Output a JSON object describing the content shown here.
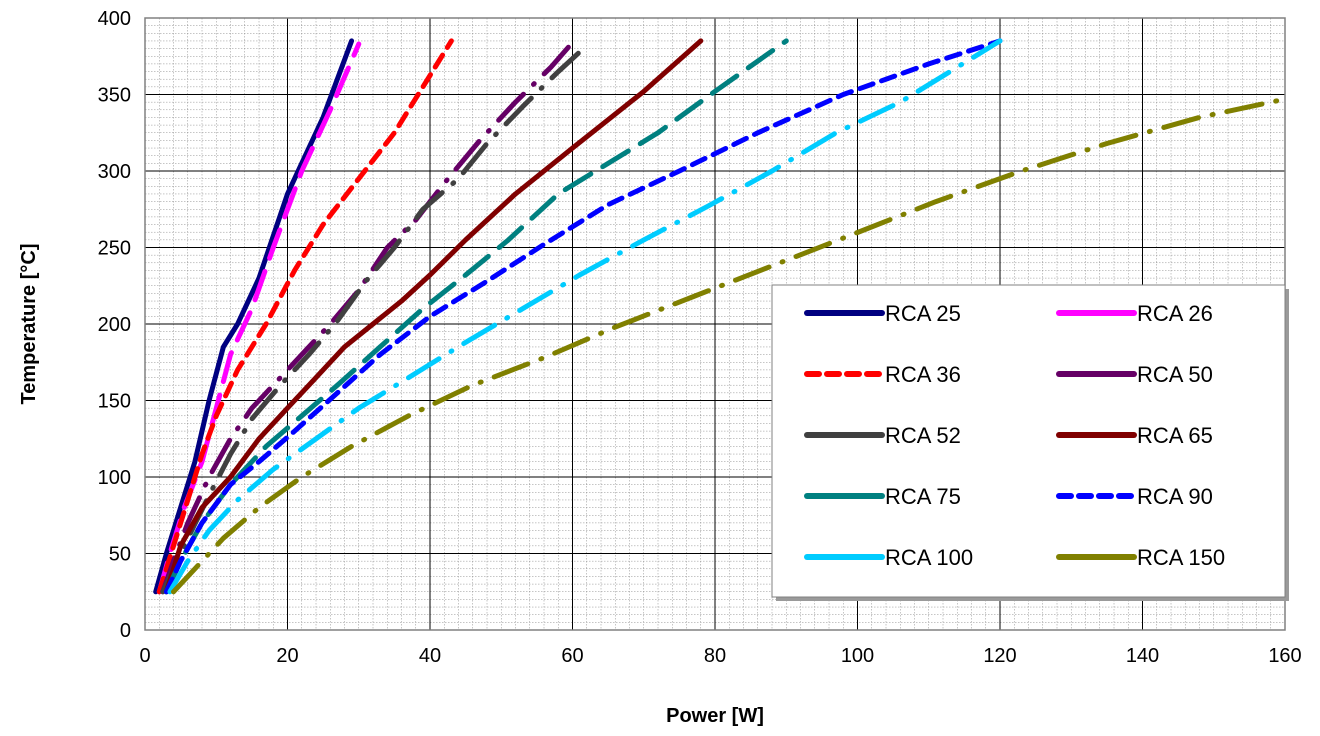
{
  "chart_data": {
    "type": "line",
    "title": "",
    "xlabel": "Power [W]",
    "ylabel": "Temperature [°C]",
    "xlim": [
      0,
      160
    ],
    "ylim": [
      0,
      400
    ],
    "xticks": [
      0,
      20,
      40,
      60,
      80,
      100,
      120,
      140,
      160
    ],
    "yticks": [
      0,
      50,
      100,
      150,
      200,
      250,
      300,
      350,
      400
    ],
    "grid": "major and minor",
    "legend_position": "right, lower-middle",
    "series": [
      {
        "name": "RCA 25",
        "color": "#000080",
        "style": "solid",
        "x": [
          1.5,
          3,
          5,
          7,
          9,
          11,
          13,
          16,
          20,
          25,
          29
        ],
        "y": [
          25,
          50,
          80,
          110,
          150,
          185,
          200,
          230,
          285,
          335,
          385
        ]
      },
      {
        "name": "RCA 26",
        "color": "#ff00ff",
        "style": "long-dash",
        "x": [
          2,
          3.5,
          5.5,
          8,
          10,
          12,
          15,
          18,
          22,
          26,
          30
        ],
        "y": [
          25,
          50,
          80,
          110,
          145,
          180,
          210,
          250,
          300,
          340,
          383
        ]
      },
      {
        "name": "RCA 36",
        "color": "#ff0000",
        "style": "dash",
        "x": [
          2,
          4,
          6,
          8,
          10,
          13,
          17,
          21,
          25,
          30,
          35,
          39,
          43
        ],
        "y": [
          25,
          55,
          85,
          115,
          140,
          170,
          200,
          235,
          265,
          295,
          325,
          355,
          385
        ]
      },
      {
        "name": "RCA 50",
        "color": "#660066",
        "style": "long-dash-dot",
        "x": [
          2.5,
          4,
          6,
          9,
          12,
          15,
          18,
          22,
          26,
          30,
          34,
          38,
          42,
          47,
          52,
          57,
          60
        ],
        "y": [
          25,
          45,
          70,
          100,
          125,
          145,
          160,
          180,
          200,
          222,
          250,
          268,
          292,
          320,
          345,
          368,
          384
        ]
      },
      {
        "name": "RCA 52",
        "color": "#404040",
        "style": "long-dash-dot",
        "x": [
          2.5,
          4,
          6,
          9,
          12,
          15,
          19,
          23,
          27,
          31,
          35,
          39,
          44,
          48,
          53,
          58,
          62
        ],
        "y": [
          25,
          40,
          60,
          88,
          115,
          138,
          160,
          180,
          202,
          228,
          250,
          275,
          295,
          318,
          342,
          365,
          382
        ]
      },
      {
        "name": "RCA 65",
        "color": "#800000",
        "style": "solid",
        "x": [
          3,
          5,
          8,
          12,
          16,
          20,
          24,
          28,
          32,
          36,
          40,
          45,
          52,
          60,
          70,
          78
        ],
        "y": [
          25,
          55,
          80,
          100,
          125,
          145,
          165,
          185,
          200,
          215,
          232,
          255,
          285,
          315,
          352,
          385
        ]
      },
      {
        "name": "RCA 75",
        "color": "#008080",
        "style": "long-dash",
        "x": [
          3,
          5,
          8,
          12,
          17,
          22,
          27,
          33,
          39,
          45,
          51,
          58,
          65,
          72,
          80,
          90
        ],
        "y": [
          25,
          45,
          70,
          95,
          120,
          140,
          160,
          185,
          210,
          232,
          255,
          285,
          305,
          325,
          352,
          385
        ]
      },
      {
        "name": "RCA 90",
        "color": "#0000ff",
        "style": "dash",
        "x": [
          3,
          5,
          8,
          12,
          16,
          21,
          27,
          33,
          40,
          48,
          56,
          65,
          75,
          86,
          98,
          110,
          120
        ],
        "y": [
          25,
          45,
          70,
          95,
          110,
          130,
          155,
          180,
          205,
          228,
          252,
          278,
          300,
          325,
          350,
          370,
          385
        ]
      },
      {
        "name": "RCA 100",
        "color": "#00ccff",
        "style": "long-dash-dot",
        "x": [
          3.5,
          6,
          9,
          13,
          18,
          24,
          30,
          37,
          45,
          53,
          61,
          70,
          79,
          88,
          97,
          106,
          113,
          120
        ],
        "y": [
          25,
          45,
          65,
          85,
          105,
          125,
          145,
          165,
          188,
          210,
          232,
          255,
          277,
          300,
          325,
          345,
          365,
          385
        ]
      },
      {
        "name": "RCA 150",
        "color": "#808000",
        "style": "long-dash-dot",
        "x": [
          4,
          7,
          11,
          16,
          22,
          29,
          37,
          46,
          56,
          66,
          77,
          88,
          99,
          111,
          123,
          135,
          148,
          160
        ],
        "y": [
          25,
          40,
          60,
          80,
          100,
          120,
          140,
          160,
          178,
          198,
          218,
          238,
          258,
          280,
          300,
          318,
          335,
          347
        ]
      }
    ]
  }
}
